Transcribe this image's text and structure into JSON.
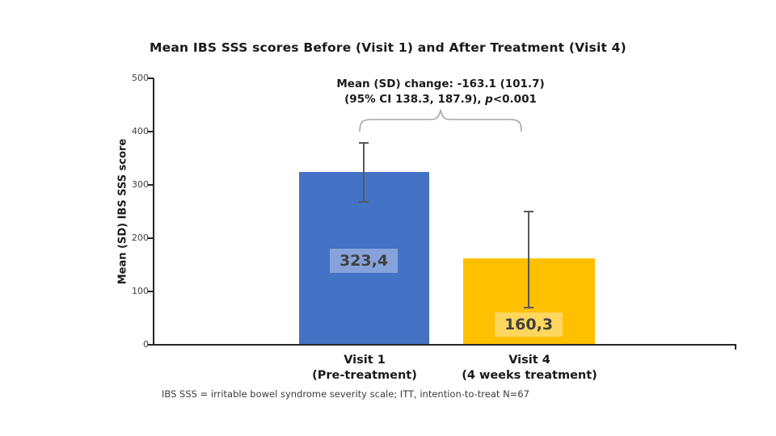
{
  "chart_data": {
    "type": "bar",
    "title": "Mean IBS SSS scores Before (Visit 1) and After Treatment (Visit 4)",
    "ylabel": "Mean (SD) IBS SSS score",
    "xlabel": "",
    "ylim": [
      0,
      500
    ],
    "yticks": [
      0,
      100,
      200,
      300,
      400,
      500
    ],
    "grid": false,
    "legend": "none",
    "categories": [
      "Visit 1",
      "Visit 4"
    ],
    "category_sublabels": [
      "(Pre-treatment)",
      "(4 weeks treatment)"
    ],
    "series": [
      {
        "name": "Mean IBS SSS score",
        "values": [
          323.4,
          160.3
        ]
      }
    ],
    "display_values": [
      "323,4",
      "160,3"
    ],
    "bar_colors": [
      "#4472C4",
      "#FFC000"
    ],
    "value_label_bg": [
      "#85A3DA",
      "#FFD75E"
    ],
    "value_label_color": "#404040",
    "error_bars": [
      {
        "upper": 379,
        "lower": 268
      },
      {
        "upper": 250,
        "lower": 70
      }
    ],
    "error_bar_color": "#595959",
    "annotation": {
      "line1": "Mean (SD) change: -163.1 (101.7)",
      "line2_pre": "(95% CI 138.3, 187.9), ",
      "line2_p": "p",
      "line2_post": "<0.001"
    },
    "brace_color": "#A6A6A6",
    "axis_color": "#262626"
  },
  "footnote": "IBS SSS = irritable bowel syndrome severity scale; ITT, intention-to-treat N=67"
}
